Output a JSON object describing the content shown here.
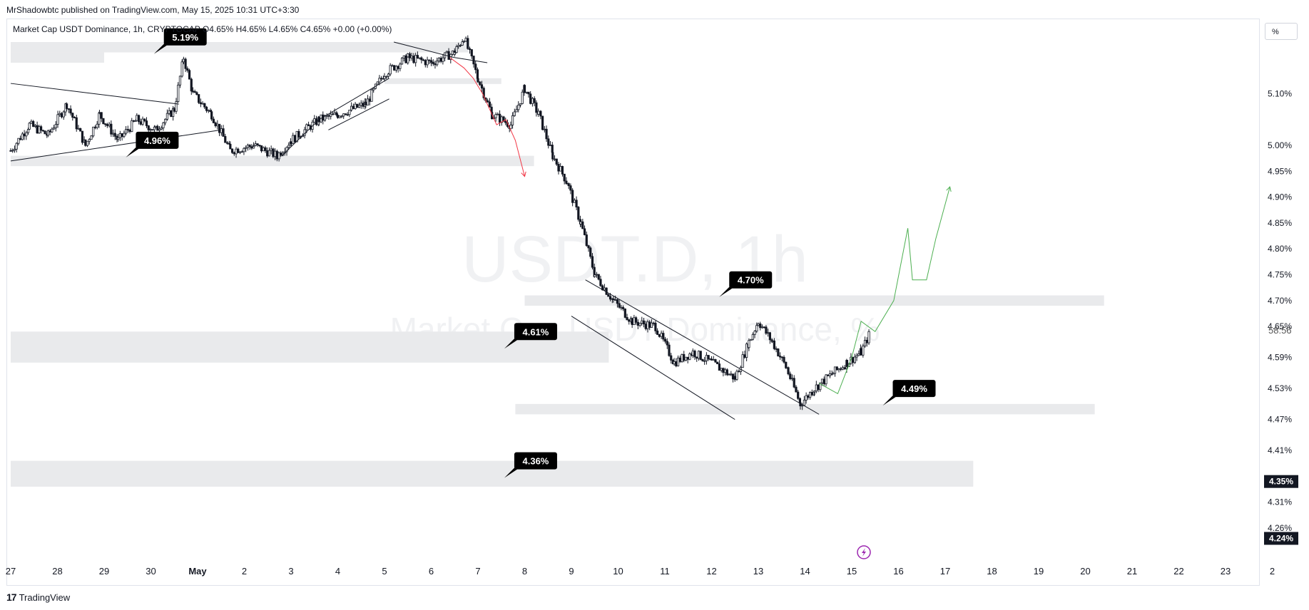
{
  "header": {
    "publisher": "MrShadowbtc published on TradingView.com, May 15, 2025 10:31 UTC+3:30",
    "symbol_line": "Market Cap USDT Dominance, 1h, CRYPTOCAP  O4.65%  H4.65%  L4.65%  C4.65%  +0.00 (+0.00%)"
  },
  "watermark": {
    "ticker": "USDT.D, 1h",
    "name": "Market Cap USDT Dominance, %"
  },
  "scale_mode": "%",
  "countdown": "58:56",
  "footer": {
    "brand": "TradingView",
    "logo": "17"
  },
  "colors": {
    "candle": "#131722",
    "zone": "#e9eaec",
    "label_bg": "#000000",
    "projection_up": "#4caf50",
    "projection_down": "#f23645",
    "current_price_bg": "#131722",
    "alert_icon": "#9c27b0"
  },
  "icons": {
    "alert": "lightning-bolt-icon",
    "logo": "tradingview-logo-icon"
  },
  "chart_data": {
    "type": "line",
    "title": "Market Cap USDT Dominance, 1h, CRYPTOCAP",
    "ylabel": "%",
    "ylim": [
      4.22,
      5.24
    ],
    "x_ticks": [
      "27",
      "28",
      "29",
      "30",
      "May",
      "2",
      "3",
      "4",
      "5",
      "6",
      "7",
      "8",
      "9",
      "10",
      "11",
      "12",
      "13",
      "14",
      "15",
      "16",
      "17",
      "18",
      "19",
      "20",
      "21",
      "22",
      "23",
      "2"
    ],
    "y_ticks": [
      "5.10%",
      "5.00%",
      "4.95%",
      "4.90%",
      "4.85%",
      "4.80%",
      "4.75%",
      "4.70%",
      "4.65%",
      "4.59%",
      "4.53%",
      "4.47%",
      "4.41%",
      "4.35%",
      "4.31%",
      "4.26%",
      "4.24%"
    ],
    "current_price_label": "4.35%",
    "low_price_label": "4.24%",
    "price_path": [
      {
        "x": 27.0,
        "y": 4.99
      },
      {
        "x": 27.4,
        "y": 5.04
      },
      {
        "x": 27.8,
        "y": 5.02
      },
      {
        "x": 28.2,
        "y": 5.08
      },
      {
        "x": 28.6,
        "y": 5.0
      },
      {
        "x": 28.9,
        "y": 5.06
      },
      {
        "x": 29.3,
        "y": 5.01
      },
      {
        "x": 29.7,
        "y": 5.05
      },
      {
        "x": 30.1,
        "y": 5.03
      },
      {
        "x": 30.5,
        "y": 5.07
      },
      {
        "x": 30.7,
        "y": 5.17
      },
      {
        "x": 30.9,
        "y": 5.1
      },
      {
        "x": 31.3,
        "y": 5.06
      },
      {
        "x": 31.7,
        "y": 4.99
      },
      {
        "x": 32.2,
        "y": 5.0
      },
      {
        "x": 32.7,
        "y": 4.98
      },
      {
        "x": 33.0,
        "y": 5.01
      },
      {
        "x": 33.6,
        "y": 5.05
      },
      {
        "x": 34.0,
        "y": 5.06
      },
      {
        "x": 34.6,
        "y": 5.08
      },
      {
        "x": 35.0,
        "y": 5.14
      },
      {
        "x": 35.5,
        "y": 5.17
      },
      {
        "x": 36.0,
        "y": 5.16
      },
      {
        "x": 36.5,
        "y": 5.18
      },
      {
        "x": 36.7,
        "y": 5.21
      },
      {
        "x": 37.0,
        "y": 5.13
      },
      {
        "x": 37.3,
        "y": 5.06
      },
      {
        "x": 37.7,
        "y": 5.04
      },
      {
        "x": 38.0,
        "y": 5.11
      },
      {
        "x": 38.3,
        "y": 5.06
      },
      {
        "x": 38.6,
        "y": 4.98
      },
      {
        "x": 38.9,
        "y": 4.93
      },
      {
        "x": 39.2,
        "y": 4.85
      },
      {
        "x": 39.5,
        "y": 4.75
      },
      {
        "x": 39.9,
        "y": 4.7
      },
      {
        "x": 40.3,
        "y": 4.66
      },
      {
        "x": 40.8,
        "y": 4.65
      },
      {
        "x": 41.2,
        "y": 4.58
      },
      {
        "x": 41.6,
        "y": 4.6
      },
      {
        "x": 42.0,
        "y": 4.58
      },
      {
        "x": 42.5,
        "y": 4.55
      },
      {
        "x": 42.8,
        "y": 4.62
      },
      {
        "x": 43.0,
        "y": 4.66
      },
      {
        "x": 43.3,
        "y": 4.62
      },
      {
        "x": 43.6,
        "y": 4.57
      },
      {
        "x": 43.9,
        "y": 4.5
      },
      {
        "x": 44.2,
        "y": 4.53
      },
      {
        "x": 44.6,
        "y": 4.56
      },
      {
        "x": 44.9,
        "y": 4.58
      },
      {
        "x": 45.2,
        "y": 4.6
      },
      {
        "x": 45.4,
        "y": 4.64
      }
    ],
    "projections": [
      {
        "color": "#4caf50",
        "points": [
          {
            "x": 44.3,
            "y": 4.54
          },
          {
            "x": 44.7,
            "y": 4.52
          },
          {
            "x": 45.0,
            "y": 4.59
          },
          {
            "x": 45.2,
            "y": 4.66
          },
          {
            "x": 45.5,
            "y": 4.64
          },
          {
            "x": 45.9,
            "y": 4.7
          },
          {
            "x": 46.2,
            "y": 4.84
          },
          {
            "x": 46.3,
            "y": 4.74
          },
          {
            "x": 46.6,
            "y": 4.74
          },
          {
            "x": 46.8,
            "y": 4.82
          },
          {
            "x": 47.1,
            "y": 4.92
          }
        ]
      },
      {
        "color": "#f23645",
        "points": [
          {
            "x": 36.4,
            "y": 5.17
          },
          {
            "x": 36.7,
            "y": 5.15
          },
          {
            "x": 36.9,
            "y": 5.13
          },
          {
            "x": 37.1,
            "y": 5.1
          },
          {
            "x": 37.4,
            "y": 5.04
          },
          {
            "x": 37.6,
            "y": 5.05
          },
          {
            "x": 37.8,
            "y": 5.01
          },
          {
            "x": 38.0,
            "y": 4.94
          }
        ]
      }
    ],
    "zones": [
      {
        "x0": 27.0,
        "x1": 36.8,
        "y0": 5.18,
        "y1": 5.2
      },
      {
        "x0": 27.0,
        "x1": 29.0,
        "y0": 5.16,
        "y1": 5.18
      },
      {
        "x0": 35.0,
        "x1": 37.5,
        "y0": 5.12,
        "y1": 5.13
      },
      {
        "x0": 27.0,
        "x1": 38.2,
        "y0": 4.96,
        "y1": 4.98
      },
      {
        "x0": 38.0,
        "x1": 50.4,
        "y0": 4.69,
        "y1": 4.71
      },
      {
        "x0": 27.0,
        "x1": 39.8,
        "y0": 4.58,
        "y1": 4.64
      },
      {
        "x0": 37.8,
        "x1": 50.2,
        "y0": 4.48,
        "y1": 4.5
      },
      {
        "x0": 27.0,
        "x1": 47.6,
        "y0": 4.34,
        "y1": 4.39
      }
    ],
    "trendlines": [
      {
        "x0": 27.0,
        "y0": 5.12,
        "x1": 30.6,
        "y1": 5.08
      },
      {
        "x0": 27.0,
        "y0": 4.97,
        "x1": 31.5,
        "y1": 5.03
      },
      {
        "x0": 32.8,
        "y0": 4.98,
        "x1": 33.6,
        "y1": 5.05
      },
      {
        "x0": 33.6,
        "y0": 5.05,
        "x1": 35.1,
        "y1": 5.13
      },
      {
        "x0": 33.8,
        "y0": 5.03,
        "x1": 35.1,
        "y1": 5.09
      },
      {
        "x0": 35.2,
        "y0": 5.2,
        "x1": 36.5,
        "y1": 5.17
      },
      {
        "x0": 36.5,
        "y0": 5.17,
        "x1": 37.2,
        "y1": 5.16
      },
      {
        "x0": 39.3,
        "y0": 4.74,
        "x1": 44.3,
        "y1": 4.48
      },
      {
        "x0": 39.0,
        "y0": 4.67,
        "x1": 42.5,
        "y1": 4.47
      }
    ],
    "labels": [
      {
        "text": "5.19%",
        "x": 30.4,
        "y": 5.21
      },
      {
        "text": "4.96%",
        "x": 29.8,
        "y": 5.01
      },
      {
        "text": "4.70%",
        "x": 42.5,
        "y": 4.74
      },
      {
        "text": "4.61%",
        "x": 37.9,
        "y": 4.64
      },
      {
        "text": "4.49%",
        "x": 46.0,
        "y": 4.53
      },
      {
        "text": "4.36%",
        "x": 37.9,
        "y": 4.39
      }
    ]
  }
}
